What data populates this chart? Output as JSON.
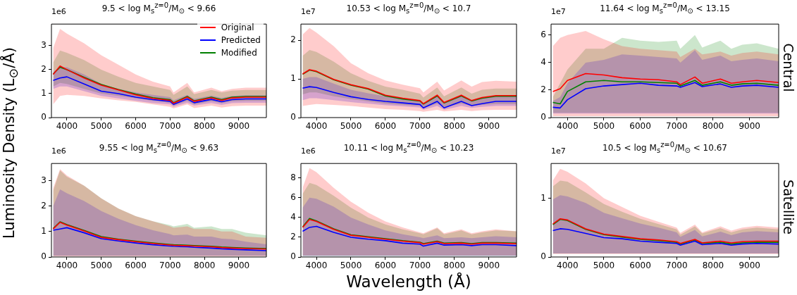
{
  "chart_data": [
    {
      "type": "line",
      "title": "9.5 < log M$_{s}$$^{z=0}$/M$_{⊙}$ < 9.66",
      "ylabel": "Luminosity Density (L$_{⊙}$/Å)",
      "annotations": [
        "1e6"
      ],
      "legend": "top right",
      "x": [
        3600,
        3800,
        4000,
        4500,
        5000,
        5500,
        6000,
        6500,
        7000,
        7100,
        7500,
        7700,
        8200,
        8500,
        8800,
        9200,
        9800
      ],
      "xlim": [
        3550,
        9800
      ],
      "xticks": [
        4000,
        5000,
        6000,
        7000,
        8000,
        9000
      ],
      "ylim": [
        0,
        3.9
      ],
      "yticks": [
        0,
        1,
        2,
        3
      ],
      "series": [
        {
          "name": "Original",
          "color": "#ff0000",
          "values": [
            1.8,
            2.15,
            2.0,
            1.65,
            1.35,
            1.15,
            0.95,
            0.8,
            0.72,
            0.6,
            0.85,
            0.68,
            0.82,
            0.72,
            0.82,
            0.85,
            0.85
          ],
          "lower": [
            0.55,
            0.9,
            0.95,
            0.9,
            0.8,
            0.72,
            0.65,
            0.55,
            0.45,
            0.38,
            0.55,
            0.4,
            0.5,
            0.42,
            0.48,
            0.5,
            0.5
          ],
          "upper": [
            2.9,
            3.7,
            3.5,
            3.1,
            2.6,
            2.2,
            1.8,
            1.5,
            1.3,
            1.05,
            1.45,
            1.05,
            1.25,
            1.1,
            1.2,
            1.25,
            1.25
          ]
        },
        {
          "name": "Predicted",
          "color": "#0000ff",
          "values": [
            1.55,
            1.65,
            1.7,
            1.4,
            1.1,
            1.0,
            0.85,
            0.75,
            0.68,
            0.55,
            0.78,
            0.62,
            0.76,
            0.66,
            0.75,
            0.78,
            0.78
          ],
          "lower": [
            1.2,
            1.3,
            1.3,
            1.1,
            0.9,
            0.8,
            0.7,
            0.6,
            0.55,
            0.45,
            0.62,
            0.5,
            0.6,
            0.53,
            0.6,
            0.62,
            0.62
          ],
          "upper": [
            1.9,
            2.1,
            2.1,
            1.8,
            1.4,
            1.2,
            1.05,
            0.95,
            0.85,
            0.72,
            0.95,
            0.78,
            0.92,
            0.82,
            0.9,
            0.93,
            0.93
          ]
        },
        {
          "name": "Modified",
          "color": "#008000",
          "values": [
            1.82,
            2.1,
            2.0,
            1.68,
            1.38,
            1.17,
            0.98,
            0.83,
            0.75,
            0.62,
            0.88,
            0.7,
            0.85,
            0.75,
            0.85,
            0.88,
            0.88
          ],
          "lower": [
            1.3,
            1.45,
            1.4,
            1.2,
            1.0,
            0.9,
            0.8,
            0.7,
            0.62,
            0.5,
            0.7,
            0.55,
            0.68,
            0.6,
            0.68,
            0.7,
            0.7
          ],
          "upper": [
            2.3,
            2.8,
            2.7,
            2.4,
            2.0,
            1.7,
            1.45,
            1.3,
            1.15,
            0.95,
            1.3,
            0.98,
            1.15,
            1.05,
            1.12,
            1.15,
            1.15
          ]
        }
      ]
    },
    {
      "type": "line",
      "title": "10.53 < log M$_{s}$$^{z=0}$/M$_{⊙}$ < 10.7",
      "annotations": [
        "1e7"
      ],
      "x": [
        3600,
        3800,
        4000,
        4500,
        5000,
        5500,
        6000,
        6500,
        7000,
        7100,
        7500,
        7700,
        8200,
        8500,
        8800,
        9200,
        9800
      ],
      "xlim": [
        3550,
        9800
      ],
      "xticks": [
        4000,
        5000,
        6000,
        7000,
        8000,
        9000
      ],
      "ylim": [
        0,
        2.42
      ],
      "yticks": [
        0,
        1,
        2
      ],
      "series": [
        {
          "color": "#ff0000",
          "values": [
            1.13,
            1.24,
            1.2,
            0.99,
            0.85,
            0.75,
            0.58,
            0.5,
            0.44,
            0.36,
            0.58,
            0.39,
            0.58,
            0.44,
            0.52,
            0.57,
            0.57
          ],
          "lower": [
            0.3,
            0.33,
            0.35,
            0.33,
            0.3,
            0.26,
            0.22,
            0.2,
            0.17,
            0.15,
            0.2,
            0.16,
            0.2,
            0.17,
            0.19,
            0.2,
            0.2
          ],
          "upper": [
            2.15,
            2.32,
            2.2,
            1.85,
            1.41,
            1.15,
            0.96,
            0.85,
            0.76,
            0.65,
            0.93,
            0.7,
            0.96,
            0.8,
            0.92,
            0.95,
            0.93
          ]
        },
        {
          "color": "#0000ff",
          "values": [
            0.76,
            0.8,
            0.78,
            0.65,
            0.54,
            0.47,
            0.42,
            0.38,
            0.34,
            0.25,
            0.42,
            0.25,
            0.42,
            0.31,
            0.36,
            0.42,
            0.42
          ],
          "lower": [
            0.45,
            0.5,
            0.5,
            0.45,
            0.4,
            0.36,
            0.32,
            0.29,
            0.26,
            0.2,
            0.3,
            0.2,
            0.3,
            0.25,
            0.28,
            0.3,
            0.3
          ],
          "upper": [
            1.0,
            1.05,
            1.05,
            0.88,
            0.72,
            0.63,
            0.55,
            0.5,
            0.45,
            0.36,
            0.58,
            0.38,
            0.58,
            0.45,
            0.52,
            0.56,
            0.55
          ]
        },
        {
          "color": "#008000",
          "values": [
            1.12,
            1.23,
            1.19,
            0.98,
            0.84,
            0.74,
            0.56,
            0.48,
            0.43,
            0.35,
            0.56,
            0.38,
            0.56,
            0.43,
            0.5,
            0.55,
            0.55
          ],
          "lower": [
            0.6,
            0.65,
            0.65,
            0.55,
            0.48,
            0.42,
            0.36,
            0.33,
            0.3,
            0.24,
            0.36,
            0.26,
            0.36,
            0.3,
            0.33,
            0.35,
            0.35
          ],
          "upper": [
            1.6,
            1.75,
            1.7,
            1.45,
            1.15,
            0.95,
            0.8,
            0.72,
            0.62,
            0.52,
            0.78,
            0.55,
            0.78,
            0.62,
            0.72,
            0.75,
            0.75
          ]
        }
      ]
    },
    {
      "type": "line",
      "title": "11.64 < log M$_{s}$$^{z=0}$/M$_{⊙}$ < 13.15",
      "y2label": "Central",
      "annotations": [
        "1e7"
      ],
      "x": [
        3600,
        3800,
        4000,
        4500,
        5000,
        5500,
        6000,
        6500,
        7000,
        7100,
        7500,
        7700,
        8200,
        8500,
        8800,
        9200,
        9800
      ],
      "xlim": [
        3550,
        9800
      ],
      "xticks": [
        4000,
        5000,
        6000,
        7000,
        8000,
        9000
      ],
      "ylim": [
        0,
        6.8
      ],
      "yticks": [
        0,
        2,
        4,
        6
      ],
      "series": [
        {
          "color": "#ff0000",
          "values": [
            1.9,
            2.1,
            2.7,
            3.2,
            3.1,
            2.9,
            2.8,
            2.75,
            2.6,
            2.4,
            2.95,
            2.5,
            2.8,
            2.5,
            2.6,
            2.7,
            2.55
          ],
          "lower": [
            0.1,
            0.1,
            0.1,
            0.1,
            0.1,
            0.1,
            0.1,
            0.1,
            0.1,
            0.1,
            0.1,
            0.1,
            0.1,
            0.1,
            0.1,
            0.1,
            0.1
          ],
          "upper": [
            5.2,
            5.8,
            6.0,
            6.3,
            5.7,
            5.2,
            5.0,
            4.9,
            4.8,
            4.4,
            5.0,
            4.6,
            4.8,
            4.5,
            4.7,
            4.8,
            4.6
          ]
        },
        {
          "color": "#0000ff",
          "values": [
            0.75,
            0.7,
            1.3,
            2.1,
            2.3,
            2.4,
            2.5,
            2.35,
            2.3,
            2.2,
            2.55,
            2.25,
            2.45,
            2.2,
            2.3,
            2.35,
            2.2
          ],
          "lower": [
            0.3,
            0.3,
            0.3,
            0.3,
            0.3,
            0.3,
            0.3,
            0.3,
            0.3,
            0.3,
            0.3,
            0.3,
            0.3,
            0.3,
            0.3,
            0.3,
            0.3
          ],
          "upper": [
            1.2,
            1.5,
            2.5,
            4.0,
            4.2,
            4.6,
            4.5,
            4.4,
            4.3,
            4.0,
            4.9,
            4.2,
            4.5,
            4.1,
            4.2,
            4.3,
            4.1
          ]
        },
        {
          "color": "#008000",
          "values": [
            1.1,
            1.0,
            1.9,
            2.6,
            2.7,
            2.6,
            2.6,
            2.55,
            2.5,
            2.3,
            2.7,
            2.35,
            2.6,
            2.35,
            2.45,
            2.5,
            2.35
          ],
          "lower": [
            0.35,
            0.35,
            0.35,
            0.35,
            0.35,
            0.35,
            0.35,
            0.35,
            0.35,
            0.35,
            0.35,
            0.35,
            0.35,
            0.35,
            0.35,
            0.35,
            0.35
          ],
          "upper": [
            1.5,
            2.5,
            3.5,
            5.0,
            5.0,
            5.8,
            5.6,
            5.5,
            5.6,
            5.0,
            6.0,
            5.1,
            5.6,
            5.0,
            5.3,
            5.4,
            5.0
          ]
        }
      ]
    },
    {
      "type": "line",
      "title": "9.55 < log M$_{s}$$^{z=0}$/M$_{⊙}$ < 9.63",
      "annotations": [
        "1e6"
      ],
      "x": [
        3600,
        3800,
        4000,
        4500,
        5000,
        5500,
        6000,
        6500,
        7000,
        7100,
        7500,
        7700,
        8200,
        8500,
        8800,
        9200,
        9800
      ],
      "xlim": [
        3550,
        9800
      ],
      "xticks": [
        4000,
        5000,
        6000,
        7000,
        8000,
        9000
      ],
      "ylim": [
        0,
        3.67
      ],
      "yticks": [
        0,
        1,
        2,
        3
      ],
      "series": [
        {
          "color": "#ff0000",
          "values": [
            1.1,
            1.36,
            1.25,
            1.02,
            0.77,
            0.68,
            0.6,
            0.53,
            0.47,
            0.46,
            0.44,
            0.43,
            0.4,
            0.37,
            0.35,
            0.33,
            0.31
          ],
          "lower": [
            0.03,
            0.03,
            0.03,
            0.03,
            0.03,
            0.03,
            0.03,
            0.03,
            0.03,
            0.03,
            0.03,
            0.03,
            0.03,
            0.03,
            0.03,
            0.03,
            0.03
          ],
          "upper": [
            2.7,
            3.45,
            3.2,
            2.8,
            2.3,
            1.9,
            1.6,
            1.4,
            1.2,
            1.15,
            1.2,
            1.1,
            1.1,
            1.0,
            1.0,
            0.8,
            0.75
          ]
        },
        {
          "color": "#0000ff",
          "values": [
            1.05,
            1.1,
            1.15,
            0.95,
            0.72,
            0.63,
            0.55,
            0.48,
            0.43,
            0.42,
            0.4,
            0.38,
            0.35,
            0.32,
            0.3,
            0.28,
            0.25
          ],
          "lower": [
            0.05,
            0.05,
            0.05,
            0.05,
            0.05,
            0.05,
            0.05,
            0.05,
            0.05,
            0.05,
            0.05,
            0.05,
            0.05,
            0.05,
            0.05,
            0.05,
            0.05
          ],
          "upper": [
            2.0,
            2.65,
            2.5,
            2.2,
            1.8,
            1.5,
            1.25,
            1.05,
            0.9,
            0.85,
            0.88,
            0.8,
            0.8,
            0.72,
            0.7,
            0.6,
            0.5
          ]
        },
        {
          "color": "#008000",
          "values": [
            1.12,
            1.38,
            1.27,
            1.04,
            0.8,
            0.7,
            0.62,
            0.55,
            0.49,
            0.48,
            0.46,
            0.45,
            0.42,
            0.39,
            0.37,
            0.35,
            0.33
          ],
          "lower": [
            0.05,
            0.05,
            0.05,
            0.05,
            0.05,
            0.05,
            0.05,
            0.05,
            0.05,
            0.05,
            0.05,
            0.05,
            0.05,
            0.05,
            0.05,
            0.05,
            0.05
          ],
          "upper": [
            2.6,
            3.4,
            3.15,
            2.8,
            2.3,
            1.9,
            1.6,
            1.4,
            1.25,
            1.2,
            1.3,
            1.15,
            1.2,
            1.1,
            1.1,
            0.95,
            0.85
          ]
        }
      ]
    },
    {
      "type": "line",
      "title": "10.11 < log M$_{s}$$^{z=0}$/M$_{⊙}$ < 10.23",
      "xlabel": "Wavelength (Å)",
      "annotations": [
        "1e6"
      ],
      "x": [
        3600,
        3800,
        4000,
        4500,
        5000,
        5500,
        6000,
        6500,
        7000,
        7100,
        7500,
        7700,
        8200,
        8500,
        8800,
        9200,
        9800
      ],
      "xlim": [
        3550,
        9800
      ],
      "xticks": [
        4000,
        5000,
        6000,
        7000,
        8000,
        9000
      ],
      "ylim": [
        0,
        9.47
      ],
      "yticks": [
        0,
        2,
        4,
        6,
        8
      ],
      "series": [
        {
          "color": "#ff0000",
          "values": [
            3.0,
            3.8,
            3.6,
            2.8,
            2.2,
            2.0,
            1.8,
            1.6,
            1.45,
            1.3,
            1.55,
            1.35,
            1.4,
            1.3,
            1.4,
            1.4,
            1.35
          ],
          "lower": [
            0.15,
            0.15,
            0.15,
            0.15,
            0.15,
            0.15,
            0.15,
            0.15,
            0.15,
            0.15,
            0.15,
            0.15,
            0.15,
            0.15,
            0.15,
            0.15,
            0.15
          ],
          "upper": [
            7.0,
            9.0,
            8.6,
            7.0,
            5.6,
            4.5,
            3.6,
            3.0,
            2.5,
            2.4,
            3.0,
            2.4,
            2.8,
            2.4,
            2.6,
            2.8,
            2.6
          ]
        },
        {
          "color": "#0000ff",
          "values": [
            2.6,
            3.0,
            3.1,
            2.5,
            2.0,
            1.8,
            1.65,
            1.4,
            1.3,
            1.1,
            1.4,
            1.2,
            1.25,
            1.15,
            1.25,
            1.25,
            1.15
          ],
          "lower": [
            0.1,
            0.1,
            0.1,
            0.1,
            0.1,
            0.1,
            0.1,
            0.1,
            0.1,
            0.1,
            0.1,
            0.1,
            0.1,
            0.1,
            0.1,
            0.1,
            0.1
          ],
          "upper": [
            5.0,
            6.0,
            5.9,
            5.1,
            4.0,
            3.3,
            2.7,
            2.3,
            2.0,
            1.9,
            2.2,
            1.9,
            2.0,
            1.9,
            2.0,
            2.1,
            2.0
          ]
        },
        {
          "color": "#008000",
          "values": [
            3.05,
            3.9,
            3.65,
            2.85,
            2.25,
            2.05,
            1.85,
            1.65,
            1.5,
            1.35,
            1.6,
            1.4,
            1.45,
            1.35,
            1.45,
            1.45,
            1.4
          ],
          "lower": [
            0.1,
            0.1,
            0.1,
            0.1,
            0.1,
            0.1,
            0.1,
            0.1,
            0.1,
            0.1,
            0.1,
            0.1,
            0.1,
            0.1,
            0.1,
            0.1,
            0.1
          ],
          "upper": [
            6.4,
            7.5,
            7.3,
            6.2,
            5.0,
            4.0,
            3.3,
            2.8,
            2.4,
            2.3,
            2.9,
            2.3,
            2.7,
            2.3,
            2.5,
            2.7,
            2.6
          ]
        }
      ]
    },
    {
      "type": "line",
      "title": "10.5 < log M$_{s}$$^{z=0}$/M$_{⊙}$ < 10.67",
      "y2label": "Satellite",
      "annotations": [
        "1e7"
      ],
      "x": [
        3600,
        3800,
        4000,
        4500,
        5000,
        5500,
        6000,
        6500,
        7000,
        7100,
        7500,
        7700,
        8200,
        8500,
        8800,
        9200,
        9800
      ],
      "xlim": [
        3550,
        9800
      ],
      "xticks": [
        4000,
        5000,
        6000,
        7000,
        8000,
        9000
      ],
      "ylim": [
        0,
        1.59
      ],
      "yticks": [
        0,
        1
      ],
      "series": [
        {
          "color": "#ff0000",
          "values": [
            0.56,
            0.65,
            0.63,
            0.48,
            0.39,
            0.35,
            0.31,
            0.29,
            0.26,
            0.23,
            0.3,
            0.24,
            0.27,
            0.24,
            0.26,
            0.27,
            0.27
          ],
          "lower": [
            0.05,
            0.05,
            0.05,
            0.05,
            0.05,
            0.05,
            0.05,
            0.05,
            0.05,
            0.05,
            0.05,
            0.05,
            0.05,
            0.05,
            0.05,
            0.05,
            0.05
          ],
          "upper": [
            1.3,
            1.5,
            1.45,
            1.25,
            1.0,
            0.85,
            0.7,
            0.6,
            0.5,
            0.41,
            0.55,
            0.42,
            0.52,
            0.45,
            0.5,
            0.53,
            0.5
          ]
        },
        {
          "color": "#0000ff",
          "values": [
            0.45,
            0.48,
            0.47,
            0.4,
            0.33,
            0.31,
            0.27,
            0.25,
            0.23,
            0.2,
            0.27,
            0.21,
            0.23,
            0.2,
            0.22,
            0.23,
            0.22
          ],
          "lower": [
            0.06,
            0.06,
            0.06,
            0.06,
            0.06,
            0.06,
            0.06,
            0.06,
            0.06,
            0.06,
            0.06,
            0.06,
            0.06,
            0.06,
            0.06,
            0.06,
            0.06
          ],
          "upper": [
            0.98,
            1.05,
            1.03,
            0.92,
            0.75,
            0.66,
            0.57,
            0.5,
            0.42,
            0.34,
            0.46,
            0.35,
            0.43,
            0.37,
            0.42,
            0.44,
            0.42
          ]
        },
        {
          "color": "#008000",
          "values": [
            0.55,
            0.64,
            0.62,
            0.47,
            0.38,
            0.34,
            0.3,
            0.28,
            0.25,
            0.22,
            0.29,
            0.23,
            0.25,
            0.22,
            0.24,
            0.25,
            0.25
          ],
          "lower": [
            0.06,
            0.06,
            0.06,
            0.06,
            0.06,
            0.06,
            0.06,
            0.06,
            0.06,
            0.06,
            0.06,
            0.06,
            0.06,
            0.06,
            0.06,
            0.06,
            0.06
          ],
          "upper": [
            1.2,
            1.3,
            1.28,
            1.1,
            0.9,
            0.77,
            0.65,
            0.56,
            0.47,
            0.38,
            0.52,
            0.4,
            0.49,
            0.42,
            0.47,
            0.5,
            0.47
          ]
        }
      ]
    }
  ]
}
